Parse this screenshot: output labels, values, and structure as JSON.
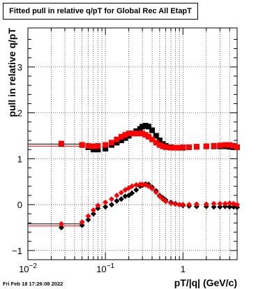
{
  "chart_data": {
    "type": "scatter",
    "title": "Fitted pull in relative q/pT for Global Rec All EtapT",
    "xlabel": "pT/|q| (GeV/c)",
    "ylabel": "pull in relative q/pT",
    "xscale": "log",
    "xlim": [
      0.01,
      5
    ],
    "ylim": [
      -1.2,
      3.85
    ],
    "grid": true,
    "x_ticks": [
      {
        "v": 0.01,
        "major": "10",
        "exp": "-2"
      },
      {
        "v": 0.1,
        "major": "10",
        "exp": "-1"
      },
      {
        "v": 1,
        "major": "1",
        "exp": ""
      }
    ],
    "y_ticks": [
      -1,
      0,
      1,
      2,
      3
    ],
    "series": [
      {
        "name": "black",
        "color": "#000000",
        "marker": "diamond",
        "x": [
          0.027,
          0.05,
          0.06,
          0.07,
          0.08,
          0.1,
          0.12,
          0.14,
          0.16,
          0.18,
          0.2,
          0.22,
          0.25,
          0.28,
          0.3,
          0.33,
          0.36,
          0.4,
          0.45,
          0.5,
          0.55,
          0.6,
          0.7,
          0.8,
          0.9,
          1.0,
          1.2,
          1.5,
          2.0,
          2.5,
          3.0,
          3.5,
          4.0,
          4.5,
          5.0
        ],
        "y": [
          -0.5,
          -0.45,
          -0.33,
          -0.2,
          -0.08,
          -0.05,
          0.0,
          0.08,
          0.12,
          0.18,
          0.2,
          0.25,
          0.32,
          0.4,
          0.42,
          0.45,
          0.44,
          0.38,
          0.3,
          0.2,
          0.15,
          0.1,
          0.05,
          0.02,
          0.0,
          -0.02,
          -0.03,
          -0.04,
          -0.04,
          -0.05,
          -0.05,
          -0.04,
          -0.05,
          -0.05,
          -0.06
        ],
        "y2": [
          1.32,
          1.3,
          1.25,
          1.2,
          1.2,
          1.22,
          1.3,
          1.35,
          1.4,
          1.45,
          1.5,
          1.55,
          1.6,
          1.65,
          1.7,
          1.72,
          1.7,
          1.62,
          1.5,
          1.4,
          1.32,
          1.28,
          1.25,
          1.24,
          1.24,
          1.24,
          1.25,
          1.26,
          1.27,
          1.27,
          1.27,
          1.27,
          1.26,
          1.25,
          1.25
        ]
      },
      {
        "name": "red",
        "color": "#ff0000",
        "marker": "diamond",
        "x": [
          0.027,
          0.05,
          0.06,
          0.07,
          0.08,
          0.1,
          0.12,
          0.14,
          0.16,
          0.18,
          0.2,
          0.22,
          0.25,
          0.28,
          0.3,
          0.33,
          0.36,
          0.4,
          0.45,
          0.5,
          0.55,
          0.6,
          0.7,
          0.8,
          0.9,
          1.0,
          1.2,
          1.5,
          2.0,
          2.5,
          3.0,
          3.5,
          4.0,
          4.5,
          5.0
        ],
        "y": [
          -0.42,
          -0.38,
          -0.25,
          -0.12,
          -0.02,
          0.05,
          0.12,
          0.2,
          0.26,
          0.32,
          0.36,
          0.4,
          0.43,
          0.44,
          0.44,
          0.43,
          0.4,
          0.35,
          0.27,
          0.18,
          0.12,
          0.07,
          0.03,
          0.01,
          0.0,
          0.0,
          0.0,
          0.01,
          0.01,
          0.02,
          0.02,
          0.02,
          0.03,
          0.02,
          0.0
        ],
        "y2": [
          1.33,
          1.3,
          1.28,
          1.27,
          1.28,
          1.3,
          1.35,
          1.42,
          1.48,
          1.52,
          1.55,
          1.55,
          1.55,
          1.55,
          1.55,
          1.52,
          1.48,
          1.42,
          1.35,
          1.3,
          1.27,
          1.25,
          1.24,
          1.24,
          1.24,
          1.25,
          1.25,
          1.26,
          1.27,
          1.28,
          1.29,
          1.3,
          1.3,
          1.28,
          1.25
        ]
      }
    ],
    "reference_lines": [
      {
        "y": 1.32,
        "xmax": 0.05
      },
      {
        "y": -0.42,
        "xmax": 0.05
      }
    ]
  },
  "footer_text": "Fri Feb 18 17:26:08 2022"
}
